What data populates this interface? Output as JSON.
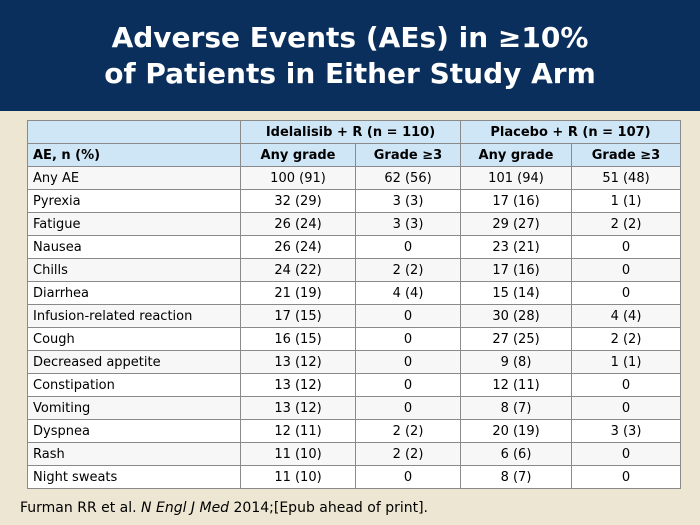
{
  "title": {
    "line1": "Adverse Events (AEs) in ≥10%",
    "line2": "of Patients in Either Study Arm"
  },
  "table": {
    "groups": [
      "",
      "Idelalisib + R (n = 110)",
      "Placebo + R (n = 107)"
    ],
    "columns": [
      "AE, n (%)",
      "Any grade",
      "Grade ≥3",
      "Any grade",
      "Grade ≥3"
    ],
    "rows": [
      [
        "Any AE",
        "100 (91)",
        "62 (56)",
        "101 (94)",
        "51 (48)"
      ],
      [
        "Pyrexia",
        "32 (29)",
        "3 (3)",
        "17 (16)",
        "1 (1)"
      ],
      [
        "Fatigue",
        "26 (24)",
        "3 (3)",
        "29 (27)",
        "2 (2)"
      ],
      [
        "Nausea",
        "26 (24)",
        "0",
        "23 (21)",
        "0"
      ],
      [
        "Chills",
        "24 (22)",
        "2 (2)",
        "17 (16)",
        "0"
      ],
      [
        "Diarrhea",
        "21 (19)",
        "4 (4)",
        "15 (14)",
        "0"
      ],
      [
        "Infusion-related reaction",
        "17 (15)",
        "0",
        "30 (28)",
        "4 (4)"
      ],
      [
        "Cough",
        "16 (15)",
        "0",
        "27 (25)",
        "2 (2)"
      ],
      [
        "Decreased appetite",
        "13 (12)",
        "0",
        "9 (8)",
        "1 (1)"
      ],
      [
        "Constipation",
        "13 (12)",
        "0",
        "12 (11)",
        "0"
      ],
      [
        "Vomiting",
        "13 (12)",
        "0",
        "8 (7)",
        "0"
      ],
      [
        "Dyspnea",
        "12 (11)",
        "2 (2)",
        "20 (19)",
        "3 (3)"
      ],
      [
        "Rash",
        "11 (10)",
        "2 (2)",
        "6 (6)",
        "0"
      ],
      [
        "Night sweats",
        "11 (10)",
        "0",
        "8 (7)",
        "0"
      ]
    ]
  },
  "footer": {
    "authors": "Furman RR et al. ",
    "journal": "N Engl J Med",
    "rest": " 2014;[Epub ahead of print]."
  },
  "colors": {
    "header_bg": "#0b2f5c",
    "page_bg": "#ece6d2",
    "table_header_bg": "#cfe6f6"
  }
}
